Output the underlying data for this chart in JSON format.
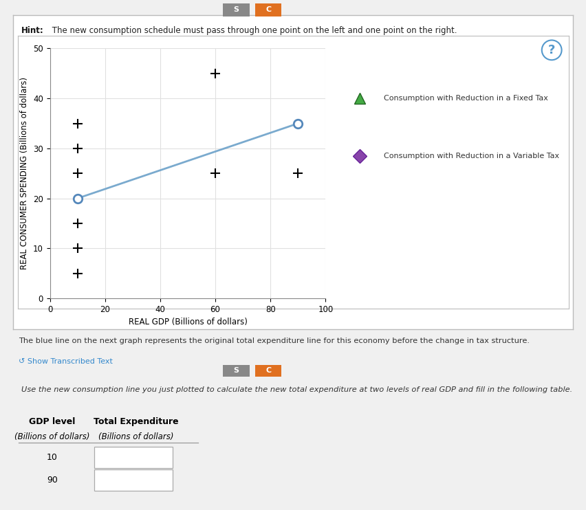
{
  "background_color": "#f0f0f0",
  "panel_bg": "#ffffff",
  "border_color": "#bbbbbb",
  "hint_bold": "Hint:",
  "hint_text": " The new consumption schedule must pass through one point on the left and one point on the right.",
  "xlabel": "REAL GDP (Billions of dollars)",
  "ylabel": "REAL CONSUMER SPENDING (Billions of dollars)",
  "xlim": [
    0,
    100
  ],
  "ylim": [
    0,
    50
  ],
  "xticks": [
    0,
    20,
    40,
    60,
    80,
    100
  ],
  "yticks": [
    0,
    10,
    20,
    30,
    40,
    50
  ],
  "line_points_x": [
    10,
    90
  ],
  "line_points_y": [
    20,
    35
  ],
  "line_color": "#7aaace",
  "circle_edge_color": "#5588bb",
  "plus_positions": [
    [
      10,
      5
    ],
    [
      10,
      10
    ],
    [
      10,
      15
    ],
    [
      10,
      25
    ],
    [
      10,
      30
    ],
    [
      10,
      35
    ],
    [
      60,
      25
    ],
    [
      60,
      45
    ],
    [
      90,
      25
    ]
  ],
  "plus_size": 10,
  "plus_lw": 1.5,
  "legend_fixed_tax_label": "Consumption with Reduction in a Fixed Tax",
  "legend_variable_tax_label": "Consumption with Reduction in a Variable Tax",
  "fixed_tax_color": "#44aa44",
  "variable_tax_color": "#8844aa",
  "tab_s_color": "#888888",
  "tab_c_color": "#e07020",
  "bottom_text": "The blue line on the next graph represents the original total expenditure line for this economy before the change in tax structure.",
  "show_transcribed_text": "↺ Show Transcribed Text",
  "table_instruction": "Use the new consumption line you just plotted to calculate the new total expenditure at two levels of real GDP and fill in the following table.",
  "table_header_gdp": "GDP level",
  "table_header_te": "Total Expenditure",
  "table_header_gdp_unit": "(Billions of dollars)",
  "table_header_te_unit": "(Billions of dollars)",
  "table_rows": [
    10,
    90
  ]
}
